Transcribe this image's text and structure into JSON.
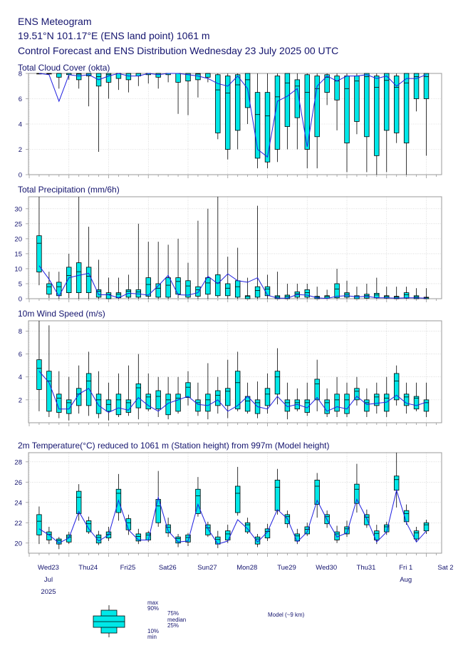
{
  "header": {
    "title": "ENS Meteogram",
    "location": "19.51°N 101.17°E (ENS land point) 1061 m",
    "subtitle": "Control Forecast and ENS Distribution Wednesday 23 July 2025 00 UTC"
  },
  "colors": {
    "box_fill": "#00e8e8",
    "box_stroke": "#000000",
    "model_line": "#1f1fe0",
    "grid": "#c8c8c8",
    "frame": "#9a9a9a",
    "text": "#14146e",
    "sunday": "#e60000"
  },
  "x_axis": {
    "days": [
      "Wed23",
      "Thu24",
      "Fri25",
      "Sat26",
      "Sun27",
      "Mon28",
      "Tue29",
      "Wed30",
      "Thu31",
      "Fri 1",
      "Sat 2"
    ],
    "sunday_label": "Sun27",
    "month_labels": [
      {
        "text": "Jul",
        "day_index": 0
      },
      {
        "text": "Aug",
        "day_index": 9
      }
    ],
    "year_label": "2025"
  },
  "legend": {
    "labels": [
      "max",
      "90%",
      "75%",
      "median",
      "25%",
      "10%",
      "min"
    ],
    "model_label": "Model (~9 km)"
  },
  "chart_data": [
    {
      "type": "boxplot",
      "title": "Total Cloud Cover (okta)",
      "ylim": [
        0,
        8
      ],
      "yticks": [
        0,
        2,
        4,
        6,
        8
      ],
      "grid": true,
      "step_hours": 6,
      "boxes": [
        [
          8,
          8,
          8,
          8,
          8
        ],
        [
          7.9,
          8,
          8,
          8,
          8
        ],
        [
          6.8,
          7.7,
          8,
          8,
          8
        ],
        [
          7.5,
          7.9,
          8,
          8,
          8
        ],
        [
          6.8,
          7.5,
          7.9,
          8,
          8
        ],
        [
          5.4,
          7.8,
          8,
          8,
          8
        ],
        [
          1.8,
          7,
          7.5,
          8,
          8
        ],
        [
          6,
          7.3,
          7.8,
          8,
          8
        ],
        [
          6.7,
          7.6,
          8,
          8,
          8
        ],
        [
          6.5,
          7.5,
          8,
          8,
          8
        ],
        [
          7,
          7.8,
          8,
          8,
          8
        ],
        [
          7.2,
          7.9,
          8,
          8,
          8
        ],
        [
          6.8,
          7.7,
          8,
          8,
          8
        ],
        [
          7.3,
          7.9,
          8,
          8,
          8
        ],
        [
          4.8,
          7.3,
          8,
          8,
          8
        ],
        [
          4.7,
          7.4,
          8,
          8,
          8
        ],
        [
          6.1,
          7.5,
          7.9,
          8,
          8
        ],
        [
          7.3,
          7.7,
          8,
          8,
          8
        ],
        [
          2.8,
          3.3,
          5.5,
          7.9,
          8
        ],
        [
          1.2,
          2,
          5.1,
          7.8,
          8
        ],
        [
          2,
          3.5,
          6.3,
          7.9,
          8
        ],
        [
          4,
          5.3,
          7,
          8,
          8
        ],
        [
          0.5,
          1.3,
          3,
          6.5,
          8
        ],
        [
          0.5,
          1,
          2.8,
          6.5,
          8
        ],
        [
          1,
          2,
          4.5,
          7.8,
          8
        ],
        [
          2,
          3.8,
          6.5,
          8,
          8
        ],
        [
          2,
          4.5,
          6.5,
          7.5,
          8
        ],
        [
          0.5,
          2,
          5.1,
          7.9,
          8
        ],
        [
          0.5,
          3,
          5.8,
          7.8,
          8
        ],
        [
          5.5,
          6.5,
          7.5,
          7.9,
          8
        ],
        [
          3.5,
          5.9,
          7,
          7.8,
          8
        ],
        [
          0.2,
          2.5,
          5.8,
          7.8,
          8
        ],
        [
          3.2,
          4.2,
          7,
          7.8,
          8
        ],
        [
          0.2,
          3,
          7.5,
          8,
          8
        ],
        [
          0,
          1.5,
          6,
          7.8,
          8
        ],
        [
          0.2,
          3.5,
          6.9,
          8,
          8
        ],
        [
          2.5,
          3.3,
          6,
          7.8,
          8
        ],
        [
          0,
          2.5,
          6.5,
          8,
          8
        ],
        [
          5,
          6,
          7.5,
          8,
          8
        ],
        [
          1.5,
          6,
          7.5,
          8,
          8
        ]
      ],
      "model": [
        8,
        7.9,
        5.8,
        7.9,
        7.8,
        7.9,
        7.5,
        7.8,
        8,
        7.8,
        7.8,
        8,
        7.9,
        8,
        8,
        7.9,
        7.8,
        7.6,
        7.2,
        7,
        7.8,
        6.8,
        2,
        1.4,
        5.8,
        6.2,
        6.8,
        2.2,
        7,
        7.8,
        7.4,
        7.8,
        7.8,
        7.9,
        7.6,
        7.8,
        7,
        7.6,
        7.6,
        7.9
      ]
    },
    {
      "type": "boxplot",
      "title": "Total Precipitation (mm/6h)",
      "ylim": [
        0,
        34
      ],
      "yticks": [
        0,
        5,
        10,
        15,
        20,
        25,
        30
      ],
      "grid": true,
      "step_hours": 6,
      "boxes": [
        [
          4.5,
          8.9,
          16,
          21,
          34
        ],
        [
          0.2,
          1.5,
          3,
          5,
          9
        ],
        [
          0,
          1,
          2.5,
          5.5,
          9
        ],
        [
          0.2,
          2,
          5,
          10.5,
          15
        ],
        [
          0,
          2,
          6,
          12,
          34
        ],
        [
          0,
          2,
          4.5,
          10.5,
          24
        ],
        [
          0,
          0.5,
          2,
          3,
          13
        ],
        [
          0,
          0,
          0.8,
          2,
          7
        ],
        [
          0,
          0.3,
          1,
          2,
          7
        ],
        [
          0,
          0.5,
          2,
          3,
          8
        ],
        [
          0,
          0.5,
          1.5,
          3,
          25
        ],
        [
          0,
          0.8,
          2.5,
          7,
          19
        ],
        [
          0,
          0.5,
          2,
          5,
          19
        ],
        [
          0,
          0.5,
          2,
          7,
          18
        ],
        [
          0.2,
          1.5,
          4.5,
          7,
          20
        ],
        [
          0,
          0.5,
          2.5,
          6,
          12
        ],
        [
          0,
          0.8,
          2,
          4,
          26
        ],
        [
          0,
          1.5,
          3.5,
          7,
          30
        ],
        [
          0.3,
          1,
          2.5,
          8,
          34
        ],
        [
          0,
          1,
          2,
          5,
          14
        ],
        [
          0,
          0.5,
          2,
          6,
          17
        ],
        [
          0,
          0,
          0.5,
          1,
          7
        ],
        [
          0,
          0.5,
          1.5,
          4,
          31
        ],
        [
          0,
          1,
          2.5,
          4,
          8
        ],
        [
          0,
          0,
          0.2,
          1,
          9
        ],
        [
          0,
          0,
          0.3,
          1.2,
          5
        ],
        [
          0,
          0.5,
          1,
          2.3,
          5
        ],
        [
          0,
          0.5,
          1,
          3,
          5
        ],
        [
          0,
          0,
          0.2,
          0.8,
          4
        ],
        [
          0,
          0.2,
          0.5,
          1,
          3
        ],
        [
          0,
          0.3,
          1.5,
          5,
          10
        ],
        [
          0,
          0.5,
          1,
          2,
          6
        ],
        [
          0,
          0,
          0.3,
          1,
          4
        ],
        [
          0,
          0.2,
          0.5,
          1.5,
          5
        ],
        [
          0,
          0.3,
          0.7,
          1.8,
          7
        ],
        [
          0,
          0.2,
          0.5,
          1,
          4
        ],
        [
          0,
          0,
          0.3,
          0.8,
          4
        ],
        [
          0,
          0.2,
          0.7,
          2,
          4
        ],
        [
          0,
          0,
          0.3,
          1,
          3.5
        ],
        [
          0,
          0,
          0.2,
          0.5,
          3.5
        ]
      ],
      "model": [
        11,
        6.5,
        0.8,
        7,
        7.8,
        8.5,
        1.3,
        1.3,
        0.3,
        1.8,
        1.6,
        1.2,
        4.3,
        7.8,
        1.3,
        1.2,
        2,
        7.5,
        5,
        8.3,
        6,
        5.5,
        7,
        1.2,
        0.2,
        0.2,
        1.4,
        1.2,
        0.3,
        0.1,
        0.8,
        1,
        0.6,
        0.8,
        0.3,
        0.3,
        0.2,
        0.3,
        0.3,
        0.2
      ]
    },
    {
      "type": "boxplot",
      "title": "10m Wind Speed (m/s)",
      "ylim": [
        0,
        8.9
      ],
      "yticks": [
        2,
        4,
        6,
        8
      ],
      "grid": true,
      "step_hours": 6,
      "boxes": [
        [
          1,
          2.9,
          4,
          5.5,
          9
        ],
        [
          0.5,
          1,
          2.8,
          4.5,
          8.5
        ],
        [
          0.4,
          0.9,
          1.8,
          2.5,
          4.5
        ],
        [
          0.2,
          0.8,
          1.5,
          2,
          4
        ],
        [
          0.8,
          1.5,
          2,
          3,
          5
        ],
        [
          0.6,
          1.5,
          3,
          4.3,
          6.2
        ],
        [
          0.4,
          0.8,
          1.5,
          2.5,
          4.5
        ],
        [
          0.2,
          1,
          1.2,
          2,
          3.5
        ],
        [
          0.5,
          0.7,
          1.5,
          2.5,
          4.3
        ],
        [
          0.6,
          0.9,
          1.5,
          2,
          5
        ],
        [
          0.3,
          1.3,
          2.7,
          3.4,
          6
        ],
        [
          1,
          1.2,
          2,
          2.5,
          4.3
        ],
        [
          0.5,
          1.2,
          1.8,
          2.8,
          4
        ],
        [
          0.3,
          0.7,
          1.5,
          2.5,
          4
        ],
        [
          0.8,
          1,
          1.8,
          2.5,
          4
        ],
        [
          1.5,
          2.2,
          2.7,
          3.5,
          4.5
        ],
        [
          0.6,
          1,
          1.5,
          2,
          3.5
        ],
        [
          0.3,
          1,
          1.5,
          2.5,
          5.2
        ],
        [
          0.8,
          1.5,
          2,
          2.8,
          4
        ],
        [
          0.4,
          1.5,
          2.5,
          3,
          5.5
        ],
        [
          1,
          1.2,
          2.5,
          4.5,
          6.2
        ],
        [
          0.8,
          1,
          1.5,
          2.3,
          3.5
        ],
        [
          0.4,
          0.8,
          1.5,
          2,
          3.6
        ],
        [
          0.8,
          1.5,
          2,
          3,
          4.3
        ],
        [
          1.6,
          2.5,
          3.5,
          4.5,
          6.5
        ],
        [
          0.3,
          1,
          1.5,
          2,
          3.5
        ],
        [
          1,
          1.2,
          1.5,
          2,
          3
        ],
        [
          0.6,
          0.9,
          1.5,
          2,
          3.5
        ],
        [
          1,
          2,
          3,
          3.8,
          5.5
        ],
        [
          0.5,
          0.8,
          1.5,
          2,
          3
        ],
        [
          0.5,
          1,
          1.5,
          2.5,
          4
        ],
        [
          0.5,
          0.8,
          1.5,
          2.5,
          3.5
        ],
        [
          1.5,
          2,
          2.5,
          3,
          4
        ],
        [
          0.5,
          1,
          1.5,
          2,
          3
        ],
        [
          0.8,
          1.5,
          2,
          2.5,
          3.5
        ],
        [
          0.5,
          1,
          1.8,
          2.5,
          4
        ],
        [
          1.5,
          2,
          3,
          4.3,
          5
        ],
        [
          0.8,
          1.5,
          2,
          2.5,
          3.5
        ],
        [
          1,
          1.2,
          2,
          2.3,
          3.5
        ],
        [
          0.5,
          1,
          1.5,
          2,
          3.5
        ]
      ],
      "model": [
        4.5,
        3.5,
        1.2,
        1.2,
        2.5,
        3,
        1.5,
        0.9,
        1.3,
        1.1,
        2.2,
        1.5,
        1,
        1.7,
        2,
        2.3,
        1.6,
        1.5,
        2,
        1,
        1.5,
        2.3,
        1.4,
        1.2,
        2.3,
        1.4,
        1.6,
        1.3,
        2.2,
        1,
        1.4,
        1.2,
        2.3,
        1.6,
        1.7,
        1.8,
        2.4,
        1.7,
        1.5,
        1.8
      ]
    },
    {
      "type": "boxplot",
      "title": "2m Temperature(°C) reduced to 1061 m (Station height) from 997m (Model height)",
      "ylim": [
        19,
        28.9
      ],
      "yticks": [
        20,
        22,
        24,
        26,
        28
      ],
      "grid": true,
      "step_hours": 6,
      "boxes": [
        [
          19.9,
          20.8,
          21.5,
          22.8,
          23.6
        ],
        [
          19.9,
          20.3,
          20.6,
          21.1,
          21.6
        ],
        [
          19.4,
          19.9,
          20.1,
          20.4,
          20.6
        ],
        [
          19.9,
          20.1,
          20.4,
          20.8,
          21.1
        ],
        [
          22.2,
          22.9,
          23.9,
          25.1,
          25.8
        ],
        [
          20.9,
          21.1,
          21.6,
          22.2,
          22.6
        ],
        [
          19.8,
          20,
          20.3,
          20.8,
          21.2
        ],
        [
          20.2,
          20.5,
          20.6,
          21.1,
          21.6
        ],
        [
          22.2,
          23,
          24.5,
          25.3,
          26.8
        ],
        [
          20.8,
          21.3,
          21.6,
          22.4,
          22.8
        ],
        [
          19.9,
          20.2,
          20.4,
          20.9,
          21.4
        ],
        [
          20.1,
          20.3,
          20.6,
          21,
          21.2
        ],
        [
          21.6,
          22,
          23,
          24.3,
          27.1
        ],
        [
          20.6,
          21,
          21.3,
          21.8,
          22.5
        ],
        [
          19.6,
          20,
          20.3,
          20.6,
          20.9
        ],
        [
          19.7,
          20.1,
          20.3,
          20.8,
          21
        ],
        [
          22.6,
          22.9,
          24,
          25.3,
          26.5
        ],
        [
          20.6,
          20.8,
          21.2,
          21.8,
          22.1
        ],
        [
          19.5,
          19.9,
          20.1,
          20.6,
          21.2
        ],
        [
          20,
          20.3,
          20.6,
          21.2,
          21.8
        ],
        [
          22.7,
          23,
          24.2,
          25.6,
          27.5
        ],
        [
          20.9,
          21.1,
          21.6,
          22,
          22.5
        ],
        [
          19.6,
          19.9,
          20.2,
          20.6,
          20.9
        ],
        [
          20.2,
          20.5,
          20.9,
          21.4,
          21.9
        ],
        [
          22.8,
          23.2,
          24.8,
          26.2,
          27.3
        ],
        [
          21.5,
          21.9,
          22.4,
          22.8,
          23.2
        ],
        [
          19.9,
          20.2,
          20.5,
          20.9,
          21.4
        ],
        [
          20.7,
          20.9,
          21.1,
          21.6,
          22
        ],
        [
          22.5,
          23.8,
          25,
          26.2,
          26.9
        ],
        [
          21.5,
          21.9,
          22.4,
          22.8,
          23.2
        ],
        [
          20,
          20.3,
          20.7,
          21.1,
          21.7
        ],
        [
          20.6,
          20.9,
          21.2,
          21.6,
          22.2
        ],
        [
          23,
          23.9,
          24.8,
          25.8,
          27.8
        ],
        [
          21.5,
          21.8,
          22.3,
          22.8,
          23.3
        ],
        [
          19.9,
          20.3,
          20.7,
          21.2,
          21.8
        ],
        [
          20.8,
          21.1,
          21.4,
          21.8,
          22.1
        ],
        [
          23.5,
          25.2,
          25.9,
          26.6,
          28.9
        ],
        [
          21.8,
          22.1,
          22.6,
          23.2,
          23.8
        ],
        [
          20.1,
          20.4,
          20.8,
          21.2,
          21.6
        ],
        [
          20.9,
          21.2,
          21.6,
          22,
          22.3
        ]
      ],
      "model": [
        21.4,
        20.8,
        20,
        20.5,
        23.1,
        21.4,
        20.2,
        20.8,
        24.2,
        21.3,
        20.3,
        20.3,
        24.5,
        21.2,
        20.1,
        20.2,
        23.8,
        21.4,
        19.9,
        20.2,
        22.3,
        21.4,
        20.1,
        21.1,
        23.3,
        22.4,
        20.1,
        21.1,
        24.2,
        22.3,
        20.6,
        21,
        24.3,
        22.4,
        20.1,
        21.1,
        25.2,
        22,
        20.1,
        21.2
      ]
    }
  ]
}
